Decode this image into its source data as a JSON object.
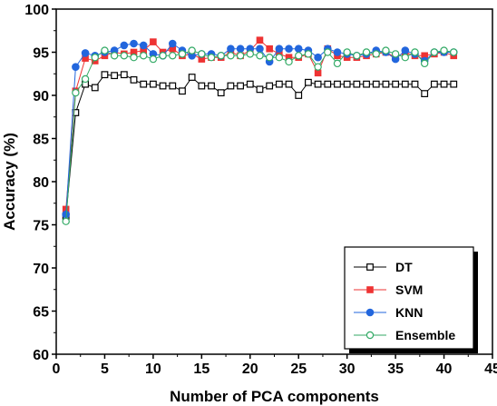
{
  "chart_data": {
    "type": "line",
    "title": "",
    "xlabel": "Number of PCA components",
    "ylabel": "Accuracy (%)",
    "xlim": [
      0,
      45
    ],
    "ylim": [
      60,
      100
    ],
    "xticks": [
      0,
      5,
      10,
      15,
      20,
      25,
      30,
      35,
      40,
      45
    ],
    "yticks": [
      60,
      65,
      70,
      75,
      80,
      85,
      90,
      95,
      100
    ],
    "grid": false,
    "legend_position": "bottom-right",
    "x": [
      1,
      2,
      3,
      4,
      5,
      6,
      7,
      8,
      9,
      10,
      11,
      12,
      13,
      14,
      15,
      16,
      17,
      18,
      19,
      20,
      21,
      22,
      23,
      24,
      25,
      26,
      27,
      28,
      29,
      30,
      31,
      32,
      33,
      34,
      35,
      36,
      37,
      38,
      39,
      40,
      41
    ],
    "series": [
      {
        "name": "DT",
        "color": "#000000",
        "marker": "open-square",
        "values": [
          76.0,
          88.0,
          91.3,
          90.9,
          92.4,
          92.3,
          92.4,
          91.8,
          91.3,
          91.3,
          91.1,
          91.1,
          90.5,
          92.1,
          91.1,
          91.1,
          90.3,
          91.1,
          91.1,
          91.3,
          90.7,
          91.1,
          91.3,
          91.3,
          90.0,
          91.5,
          91.3,
          91.3,
          91.3,
          91.3,
          91.3,
          91.3,
          91.3,
          91.3,
          91.3,
          91.3,
          91.3,
          90.2,
          91.3,
          91.3,
          91.3
        ]
      },
      {
        "name": "SVM",
        "color": "#ee3333",
        "marker": "filled-square",
        "values": [
          76.8,
          90.5,
          94.3,
          94.0,
          94.6,
          95.0,
          94.8,
          95.0,
          95.2,
          96.2,
          95.0,
          95.4,
          94.6,
          94.8,
          94.2,
          94.4,
          94.4,
          95.0,
          94.6,
          95.2,
          96.4,
          95.4,
          94.8,
          94.4,
          94.4,
          94.8,
          92.6,
          95.4,
          94.6,
          94.4,
          94.4,
          94.6,
          94.8,
          95.0,
          94.4,
          95.0,
          94.6,
          94.6,
          94.8,
          95.0,
          94.6
        ]
      },
      {
        "name": "KNN",
        "color": "#2266dd",
        "marker": "filled-circle",
        "values": [
          76.2,
          93.3,
          94.9,
          94.6,
          95.0,
          95.2,
          95.8,
          96.0,
          95.8,
          94.8,
          94.6,
          96.0,
          95.2,
          94.6,
          94.8,
          94.8,
          94.6,
          95.4,
          95.4,
          95.4,
          95.4,
          93.9,
          95.4,
          95.4,
          95.4,
          95.2,
          94.4,
          95.4,
          95.0,
          94.8,
          94.6,
          94.8,
          95.2,
          95.0,
          94.2,
          95.2,
          94.8,
          94.0,
          95.0,
          95.0,
          95.0
        ]
      },
      {
        "name": "Ensemble",
        "color": "#33aa66",
        "marker": "open-circle",
        "values": [
          75.4,
          90.3,
          91.9,
          94.4,
          95.2,
          94.6,
          94.6,
          94.4,
          94.6,
          94.2,
          94.6,
          94.6,
          94.8,
          95.2,
          94.8,
          94.4,
          94.6,
          94.6,
          94.6,
          94.8,
          94.6,
          94.4,
          94.4,
          93.9,
          94.6,
          94.8,
          93.3,
          95.0,
          93.7,
          95.0,
          94.6,
          95.0,
          94.8,
          95.2,
          94.8,
          94.4,
          95.0,
          93.7,
          95.0,
          95.2,
          95.0
        ]
      }
    ]
  }
}
